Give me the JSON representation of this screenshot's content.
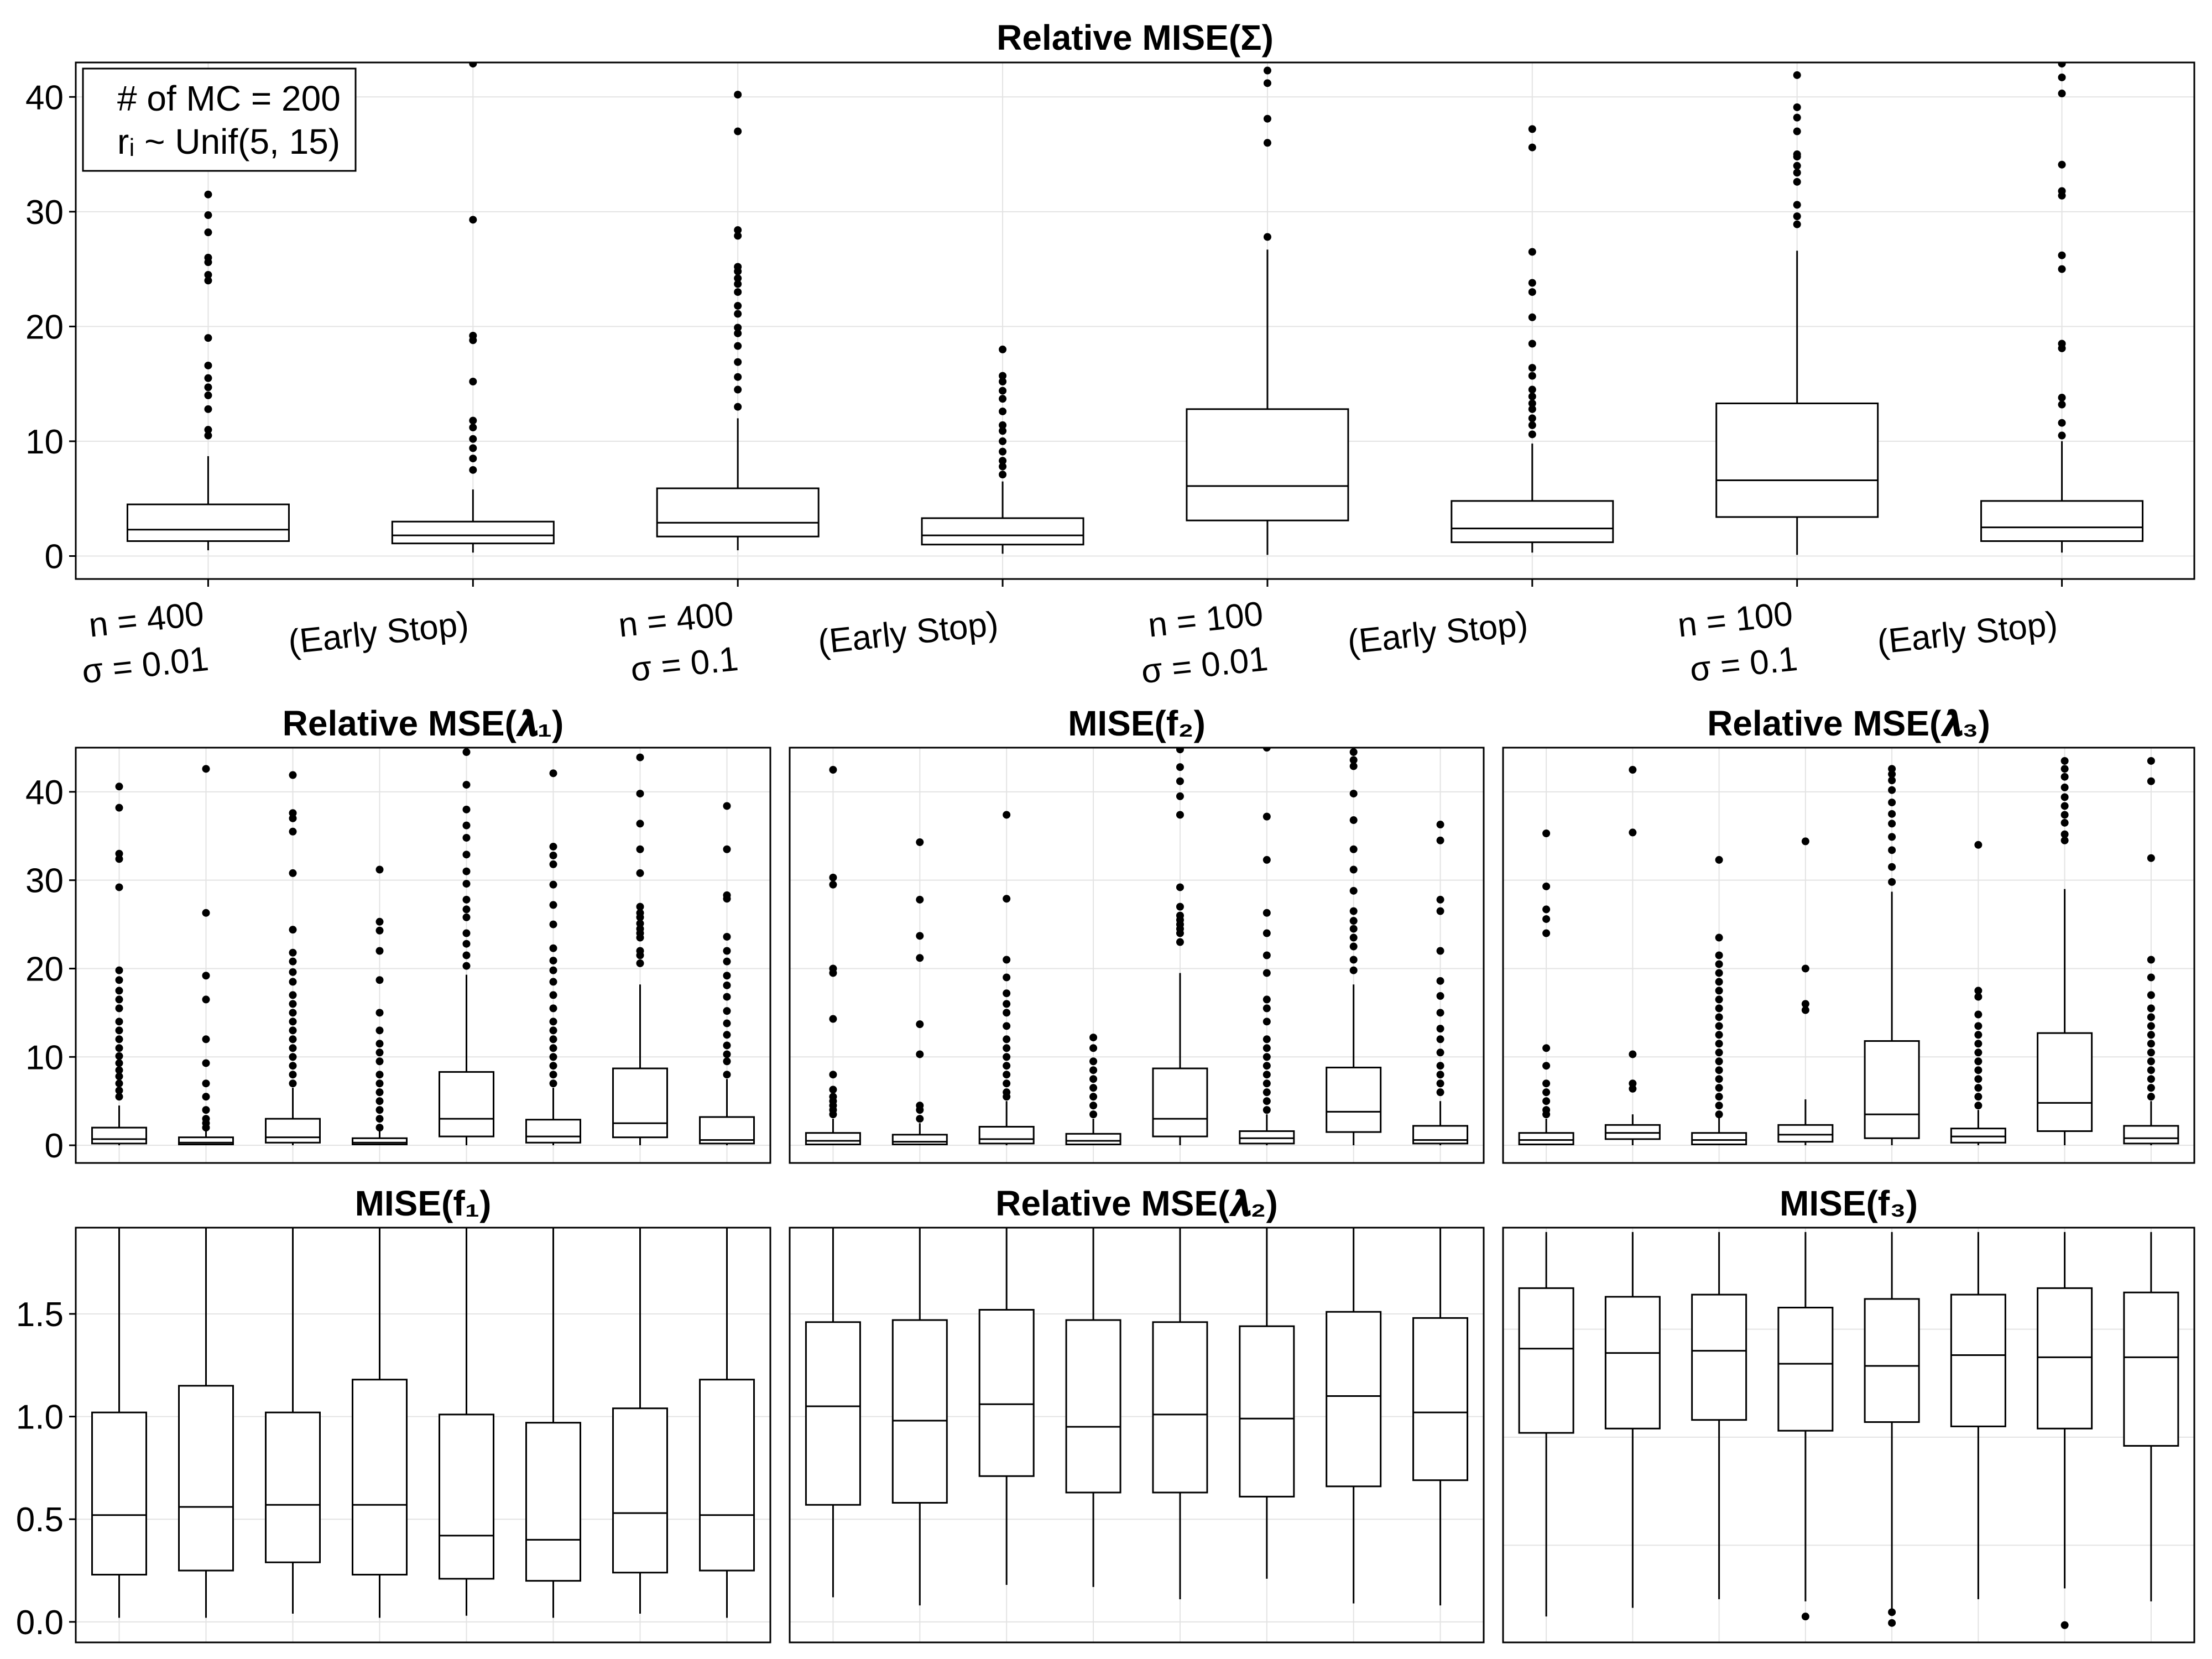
{
  "figure": {
    "legend": [
      "# of MC = 200",
      "rᵢ ~ Unif(5, 15)"
    ],
    "categories": [
      [
        "n = 400",
        "σ = 0.01"
      ],
      [
        "(Early Stop)"
      ],
      [
        "n = 400",
        "σ = 0.1"
      ],
      [
        "(Early Stop)"
      ],
      [
        "n = 100",
        "σ = 0.01"
      ],
      [
        "(Early Stop)"
      ],
      [
        "n = 100",
        "σ = 0.1"
      ],
      [
        "(Early Stop)"
      ]
    ]
  },
  "chart_data": [
    {
      "type": "box",
      "title": "Relative MISE(Σ)",
      "ylim": [
        -2,
        43
      ],
      "yticks": [
        0,
        10,
        20,
        30,
        40
      ],
      "ytick_labels": [
        "0",
        "10",
        "20",
        "30",
        "40"
      ],
      "grid": true,
      "legend_position": "top-left",
      "boxes": [
        {
          "lw": 0.5,
          "q1": 1.3,
          "med": 2.3,
          "q3": 4.5,
          "uw": 8.7,
          "out": [
            10.5,
            11.0,
            12.8,
            14.0,
            14.7,
            15.5,
            16.6,
            19.0,
            24.0,
            24.5,
            25.6,
            26.0,
            28.2,
            29.7,
            31.5
          ]
        },
        {
          "lw": 0.3,
          "q1": 1.1,
          "med": 1.8,
          "q3": 3.0,
          "uw": 5.8,
          "out": [
            7.5,
            8.5,
            9.4,
            10.2,
            11.2,
            11.8,
            15.2,
            18.8,
            19.2,
            29.3,
            42.9
          ]
        },
        {
          "lw": 0.5,
          "q1": 1.7,
          "med": 2.9,
          "q3": 5.9,
          "uw": 12.0,
          "out": [
            13.0,
            14.5,
            15.6,
            16.9,
            18.3,
            19.4,
            19.9,
            21.1,
            21.8,
            23.0,
            23.7,
            24.2,
            24.8,
            25.2,
            27.9,
            28.4,
            37.0,
            40.2
          ]
        },
        {
          "lw": 0.2,
          "q1": 1.0,
          "med": 1.8,
          "q3": 3.3,
          "uw": 6.5,
          "out": [
            7.1,
            7.8,
            8.3,
            9.1,
            10.0,
            10.9,
            11.4,
            12.6,
            13.7,
            14.4,
            15.2,
            15.7,
            18.0
          ]
        },
        {
          "lw": 0.1,
          "q1": 3.1,
          "med": 6.1,
          "q3": 12.8,
          "uw": 26.7,
          "out": [
            27.8,
            36.0,
            38.1,
            41.2,
            42.3
          ]
        },
        {
          "lw": 0.3,
          "q1": 1.2,
          "med": 2.4,
          "q3": 4.8,
          "uw": 9.8,
          "out": [
            10.6,
            11.4,
            12.0,
            12.8,
            13.3,
            13.9,
            14.5,
            15.7,
            16.4,
            18.5,
            20.8,
            23.0,
            23.8,
            26.5,
            35.6,
            37.2
          ]
        },
        {
          "lw": 0.1,
          "q1": 3.4,
          "med": 6.6,
          "q3": 13.3,
          "uw": 26.6,
          "out": [
            28.9,
            29.6,
            30.6,
            32.6,
            33.4,
            34.0,
            34.8,
            35.0,
            37.0,
            38.2,
            39.1,
            41.9
          ]
        },
        {
          "lw": 0.3,
          "q1": 1.3,
          "med": 2.5,
          "q3": 4.8,
          "uw": 10.0,
          "out": [
            10.5,
            11.6,
            13.2,
            13.8,
            18.1,
            18.5,
            25.0,
            26.2,
            31.4,
            31.8,
            34.1,
            40.3,
            41.7,
            42.9
          ]
        }
      ]
    },
    {
      "type": "box",
      "title": "Relative MSE(𝝀₁)",
      "ylim": [
        -2,
        45
      ],
      "yticks": [
        0,
        10,
        20,
        30,
        40
      ],
      "ytick_labels": [
        "0",
        "10",
        "20",
        "30",
        "40"
      ],
      "grid": true,
      "boxes": [
        {
          "lw": 0,
          "q1": 0.2,
          "med": 0.7,
          "q3": 2.0,
          "uw": 4.5,
          "out": [
            5.5,
            6.2,
            7.0,
            7.8,
            8.5,
            9.3,
            10.1,
            11.0,
            12.0,
            13.0,
            14.0,
            15.5,
            16.5,
            17.5,
            18.7,
            19.8,
            29.2,
            32.4,
            33.0,
            38.2,
            40.6
          ]
        },
        {
          "lw": 0,
          "q1": 0.1,
          "med": 0.3,
          "q3": 0.9,
          "uw": 1.8,
          "out": [
            2.0,
            2.5,
            3.0,
            4.0,
            5.5,
            7.0,
            9.3,
            12.0,
            16.5,
            19.2,
            26.3,
            42.6
          ]
        },
        {
          "lw": 0,
          "q1": 0.3,
          "med": 0.9,
          "q3": 3.0,
          "uw": 6.5,
          "out": [
            7.0,
            8.0,
            9.0,
            10.0,
            11.0,
            12.0,
            13.0,
            14.0,
            15.0,
            16.0,
            17.0,
            18.5,
            19.6,
            20.8,
            21.8,
            24.4,
            30.8,
            35.5,
            37.0,
            37.6,
            41.9
          ]
        },
        {
          "lw": 0,
          "q1": 0.1,
          "med": 0.3,
          "q3": 0.8,
          "uw": 1.6,
          "out": [
            2.0,
            3.0,
            4.0,
            5.0,
            6.0,
            7.0,
            8.0,
            9.5,
            10.5,
            11.5,
            13.0,
            15.0,
            18.7,
            22.0,
            24.3,
            25.3,
            31.2
          ]
        },
        {
          "lw": 0,
          "q1": 1.0,
          "med": 3.0,
          "q3": 8.3,
          "uw": 19.3,
          "out": [
            20.3,
            21.5,
            22.8,
            24.0,
            25.8,
            26.7,
            27.8,
            29.6,
            31.0,
            32.9,
            34.8,
            36.2,
            38.0,
            40.8,
            44.5
          ]
        },
        {
          "lw": 0,
          "q1": 0.3,
          "med": 1.0,
          "q3": 2.9,
          "uw": 6.5,
          "out": [
            7.0,
            8.0,
            9.0,
            10.0,
            11.0,
            12.0,
            13.0,
            14.0,
            15.5,
            17.0,
            18.5,
            19.8,
            20.9,
            22.3,
            25.0,
            27.2,
            29.5,
            31.8,
            32.8,
            33.8,
            42.1
          ]
        },
        {
          "lw": 0,
          "q1": 0.9,
          "med": 2.5,
          "q3": 8.7,
          "uw": 18.2,
          "out": [
            20.6,
            21.5,
            22.0,
            23.5,
            24.0,
            24.5,
            25.1,
            25.8,
            26.3,
            27.0,
            30.8,
            33.5,
            36.4,
            39.8,
            43.9
          ]
        },
        {
          "lw": 0,
          "q1": 0.2,
          "med": 0.6,
          "q3": 3.2,
          "uw": 7.5,
          "out": [
            8.0,
            9.5,
            10.3,
            11.3,
            12.5,
            13.8,
            15.2,
            16.8,
            18.1,
            19.2,
            20.8,
            22.0,
            23.6,
            27.9,
            28.3,
            33.5,
            38.4
          ]
        }
      ]
    },
    {
      "type": "box",
      "title": "Relative MSE(𝝀₂)",
      "ylim": [
        -2,
        45
      ],
      "yticks": [
        0,
        10,
        20,
        30,
        40
      ],
      "ytick_labels": [],
      "grid": true,
      "boxes": [
        {
          "lw": 0,
          "q1": 0.1,
          "med": 0.5,
          "q3": 1.4,
          "uw": 3.0,
          "out": [
            3.5,
            4.0,
            4.5,
            5.0,
            5.5,
            6.3,
            8.0,
            14.3,
            19.5,
            20.0,
            29.5,
            30.3,
            42.5
          ]
        },
        {
          "lw": 0,
          "q1": 0.1,
          "med": 0.4,
          "q3": 1.2,
          "uw": 2.5,
          "out": [
            3.0,
            4.0,
            4.5,
            10.3,
            13.7,
            21.2,
            23.7,
            27.8,
            34.3
          ]
        },
        {
          "lw": 0,
          "q1": 0.2,
          "med": 0.7,
          "q3": 2.1,
          "uw": 5.0,
          "out": [
            5.5,
            6.0,
            7.0,
            8.0,
            9.0,
            10.0,
            11.0,
            12.0,
            13.5,
            15.0,
            16.0,
            17.2,
            19.0,
            21.0,
            27.9,
            37.4
          ]
        },
        {
          "lw": 0,
          "q1": 0.1,
          "med": 0.5,
          "q3": 1.3,
          "uw": 3.0,
          "out": [
            3.5,
            4.5,
            5.5,
            6.5,
            7.5,
            8.5,
            9.5,
            11.0,
            12.2
          ]
        },
        {
          "lw": 0,
          "q1": 1.0,
          "med": 3.0,
          "q3": 8.7,
          "uw": 19.5,
          "out": [
            23.0,
            24.0,
            24.5,
            25.0,
            25.5,
            26.0,
            27.0,
            29.2,
            37.4,
            39.5,
            41.2,
            42.8,
            44.8
          ]
        },
        {
          "lw": 0,
          "q1": 0.2,
          "med": 0.8,
          "q3": 1.6,
          "uw": 3.5,
          "out": [
            4.0,
            5.0,
            6.0,
            7.0,
            8.0,
            9.0,
            10.0,
            11.0,
            12.0,
            14.0,
            15.5,
            16.5,
            19.5,
            21.5,
            24.0,
            26.3,
            32.3,
            37.2,
            45.0
          ]
        },
        {
          "lw": 0,
          "q1": 1.5,
          "med": 3.8,
          "q3": 8.8,
          "uw": 18.2,
          "out": [
            19.8,
            21.0,
            22.5,
            23.5,
            24.5,
            25.4,
            26.5,
            28.8,
            31.2,
            33.5,
            36.8,
            39.8,
            42.9,
            43.6,
            44.5
          ]
        },
        {
          "lw": 0,
          "q1": 0.2,
          "med": 0.6,
          "q3": 2.2,
          "uw": 5.0,
          "out": [
            6.0,
            7.0,
            8.0,
            9.0,
            10.5,
            12.0,
            13.2,
            15.0,
            16.9,
            18.6,
            22.0,
            26.5,
            27.8,
            34.5,
            36.3
          ]
        }
      ]
    },
    {
      "type": "box",
      "title": "Relative MSE(𝝀₃)",
      "ylim": [
        -2,
        45
      ],
      "yticks": [
        0,
        10,
        20,
        30,
        40
      ],
      "ytick_labels": [],
      "grid": true,
      "boxes": [
        {
          "lw": 0,
          "q1": 0.1,
          "med": 0.6,
          "q3": 1.4,
          "uw": 3.0,
          "out": [
            3.5,
            4.0,
            5.0,
            6.0,
            7.0,
            9.0,
            11.0,
            24.0,
            25.6,
            26.7,
            29.3,
            35.3
          ]
        },
        {
          "lw": 0,
          "q1": 0.7,
          "med": 1.4,
          "q3": 2.3,
          "uw": 3.5,
          "out": [
            6.4,
            7.0,
            10.3,
            35.4,
            42.5
          ]
        },
        {
          "lw": 0,
          "q1": 0.1,
          "med": 0.6,
          "q3": 1.4,
          "uw": 3.2,
          "out": [
            3.5,
            4.5,
            5.5,
            6.5,
            7.5,
            8.5,
            9.5,
            10.5,
            11.5,
            12.5,
            13.5,
            14.5,
            15.5,
            16.5,
            17.5,
            18.5,
            19.5,
            20.5,
            21.5,
            23.5,
            32.3
          ]
        },
        {
          "lw": 0,
          "q1": 0.4,
          "med": 1.2,
          "q3": 2.3,
          "uw": 5.2,
          "out": [
            15.3,
            16.0,
            20.0,
            34.4
          ]
        },
        {
          "lw": 0,
          "q1": 0.8,
          "med": 3.5,
          "q3": 11.8,
          "uw": 28.7,
          "out": [
            29.8,
            31.5,
            33.4,
            34.9,
            36.4,
            37.5,
            38.8,
            40.2,
            41.3,
            42.0,
            42.6
          ]
        },
        {
          "lw": 0,
          "q1": 0.3,
          "med": 1.0,
          "q3": 1.9,
          "uw": 4.0,
          "out": [
            4.5,
            5.5,
            6.5,
            7.5,
            8.5,
            9.5,
            10.5,
            11.5,
            12.5,
            13.5,
            14.8,
            16.8,
            17.5,
            34.0
          ]
        },
        {
          "lw": 0,
          "q1": 1.6,
          "med": 4.8,
          "q3": 12.7,
          "uw": 29.0,
          "out": [
            34.5,
            35.2,
            36.5,
            37.4,
            38.4,
            39.4,
            40.5,
            41.7,
            42.6,
            43.5
          ]
        },
        {
          "lw": 0,
          "q1": 0.2,
          "med": 0.8,
          "q3": 2.2,
          "uw": 5.0,
          "out": [
            5.5,
            6.5,
            7.5,
            8.5,
            9.5,
            10.5,
            11.5,
            12.5,
            13.5,
            14.5,
            15.5,
            17.0,
            19.0,
            21.0,
            32.5,
            41.2,
            43.5
          ]
        }
      ]
    },
    {
      "type": "box",
      "title": "MISE(f₁)",
      "ylim": [
        -0.1,
        1.92
      ],
      "yticks": [
        0.0,
        0.5,
        1.0,
        1.5
      ],
      "ytick_labels": [
        "0.0",
        "0.5",
        "1.0",
        "1.5"
      ],
      "grid": true,
      "boxes": [
        {
          "lw": 0.02,
          "q1": 0.23,
          "med": 0.52,
          "q3": 1.02,
          "uw": 1.95,
          "out": []
        },
        {
          "lw": 0.02,
          "q1": 0.25,
          "med": 0.56,
          "q3": 1.15,
          "uw": 1.95,
          "out": []
        },
        {
          "lw": 0.04,
          "q1": 0.29,
          "med": 0.57,
          "q3": 1.02,
          "uw": 1.95,
          "out": []
        },
        {
          "lw": 0.02,
          "q1": 0.23,
          "med": 0.57,
          "q3": 1.18,
          "uw": 1.95,
          "out": []
        },
        {
          "lw": 0.03,
          "q1": 0.21,
          "med": 0.42,
          "q3": 1.01,
          "uw": 1.95,
          "out": []
        },
        {
          "lw": 0.02,
          "q1": 0.2,
          "med": 0.4,
          "q3": 0.97,
          "uw": 1.95,
          "out": []
        },
        {
          "lw": 0.04,
          "q1": 0.24,
          "med": 0.53,
          "q3": 1.04,
          "uw": 1.95,
          "out": []
        },
        {
          "lw": 0.02,
          "q1": 0.25,
          "med": 0.52,
          "q3": 1.18,
          "uw": 1.95,
          "out": []
        }
      ]
    },
    {
      "type": "box",
      "title": "MISE(f₂)",
      "ylim": [
        -0.1,
        1.92
      ],
      "yticks": [
        0.0,
        0.5,
        1.0,
        1.5
      ],
      "ytick_labels": [],
      "grid": true,
      "boxes": [
        {
          "lw": 0.12,
          "q1": 0.57,
          "med": 1.05,
          "q3": 1.46,
          "uw": 1.95,
          "out": []
        },
        {
          "lw": 0.08,
          "q1": 0.58,
          "med": 0.98,
          "q3": 1.47,
          "uw": 1.95,
          "out": []
        },
        {
          "lw": 0.18,
          "q1": 0.71,
          "med": 1.06,
          "q3": 1.52,
          "uw": 1.95,
          "out": []
        },
        {
          "lw": 0.17,
          "q1": 0.63,
          "med": 0.95,
          "q3": 1.47,
          "uw": 1.95,
          "out": []
        },
        {
          "lw": 0.11,
          "q1": 0.63,
          "med": 1.01,
          "q3": 1.46,
          "uw": 1.95,
          "out": []
        },
        {
          "lw": 0.21,
          "q1": 0.61,
          "med": 0.99,
          "q3": 1.44,
          "uw": 1.95,
          "out": []
        },
        {
          "lw": 0.09,
          "q1": 0.66,
          "med": 1.1,
          "q3": 1.51,
          "uw": 1.95,
          "out": []
        },
        {
          "lw": 0.08,
          "q1": 0.69,
          "med": 1.02,
          "q3": 1.48,
          "uw": 1.95,
          "out": []
        }
      ]
    },
    {
      "type": "box",
      "title": "MISE(f₃)",
      "ylim": [
        0.05,
        1.97
      ],
      "yticks": [
        0.5,
        1.0,
        1.5
      ],
      "ytick_labels": [],
      "grid": true,
      "boxes": [
        {
          "lw": 0.17,
          "q1": 1.02,
          "med": 1.41,
          "q3": 1.69,
          "uw": 1.95,
          "out": []
        },
        {
          "lw": 0.21,
          "q1": 1.04,
          "med": 1.39,
          "q3": 1.65,
          "uw": 1.95,
          "out": []
        },
        {
          "lw": 0.25,
          "q1": 1.08,
          "med": 1.4,
          "q3": 1.66,
          "uw": 1.95,
          "out": []
        },
        {
          "lw": 0.24,
          "q1": 1.03,
          "med": 1.34,
          "q3": 1.6,
          "uw": 1.95,
          "out": [
            0.17
          ]
        },
        {
          "lw": 0.2,
          "q1": 1.07,
          "med": 1.33,
          "q3": 1.64,
          "uw": 1.95,
          "out": [
            0.14,
            0.19
          ]
        },
        {
          "lw": 0.25,
          "q1": 1.05,
          "med": 1.38,
          "q3": 1.66,
          "uw": 1.95,
          "out": []
        },
        {
          "lw": 0.3,
          "q1": 1.04,
          "med": 1.37,
          "q3": 1.69,
          "uw": 1.95,
          "out": [
            0.13
          ]
        },
        {
          "lw": 0.24,
          "q1": 0.96,
          "med": 1.37,
          "q3": 1.67,
          "uw": 1.95,
          "out": []
        }
      ]
    }
  ]
}
